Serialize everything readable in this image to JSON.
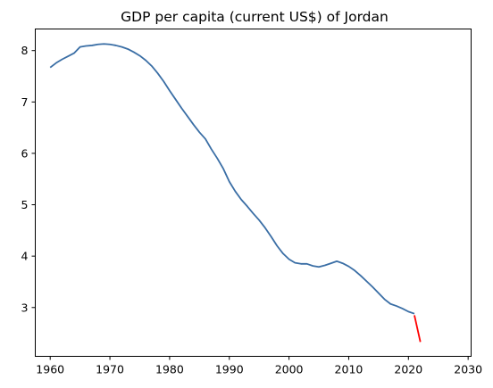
{
  "chart_data": {
    "type": "line",
    "title": "GDP per capita (current US$) of Jordan",
    "xlabel": "",
    "ylabel": "",
    "xlim": [
      1957.5,
      2030.5
    ],
    "ylim": [
      2.05,
      8.42
    ],
    "xticks": [
      1960,
      1970,
      1980,
      1990,
      2000,
      2010,
      2020,
      2030
    ],
    "yticks": [
      3,
      4,
      5,
      6,
      7,
      8
    ],
    "grid": false,
    "series": [
      {
        "color": "#3a6ea5",
        "x": [
          1960,
          1961,
          1962,
          1963,
          1964,
          1965,
          1966,
          1967,
          1968,
          1969,
          1970,
          1971,
          1972,
          1973,
          1974,
          1975,
          1976,
          1977,
          1978,
          1979,
          1980,
          1981,
          1982,
          1983,
          1984,
          1985,
          1986,
          1987,
          1988,
          1989,
          1990,
          1991,
          1992,
          1993,
          1994,
          1995,
          1996,
          1997,
          1998,
          1999,
          2000,
          2001,
          2002,
          2003,
          2004,
          2005,
          2006,
          2007,
          2008,
          2009,
          2010,
          2011,
          2012,
          2013,
          2014,
          2015,
          2016,
          2017,
          2018,
          2019,
          2020,
          2021
        ],
        "y": [
          7.67,
          7.76,
          7.83,
          7.89,
          7.95,
          8.07,
          8.09,
          8.1,
          8.12,
          8.13,
          8.12,
          8.1,
          8.07,
          8.03,
          7.97,
          7.9,
          7.81,
          7.7,
          7.56,
          7.4,
          7.22,
          7.05,
          6.88,
          6.72,
          6.56,
          6.41,
          6.28,
          6.08,
          5.9,
          5.7,
          5.45,
          5.26,
          5.1,
          4.97,
          4.83,
          4.7,
          4.55,
          4.38,
          4.2,
          4.05,
          3.94,
          3.87,
          3.85,
          3.85,
          3.81,
          3.79,
          3.82,
          3.86,
          3.9,
          3.86,
          3.8,
          3.72,
          3.62,
          3.51,
          3.4,
          3.28,
          3.16,
          3.07,
          3.03,
          2.98,
          2.92,
          2.88
        ]
      },
      {
        "color": "#ff0000",
        "x": [
          2021,
          2022
        ],
        "y": [
          2.85,
          2.33
        ]
      }
    ]
  }
}
